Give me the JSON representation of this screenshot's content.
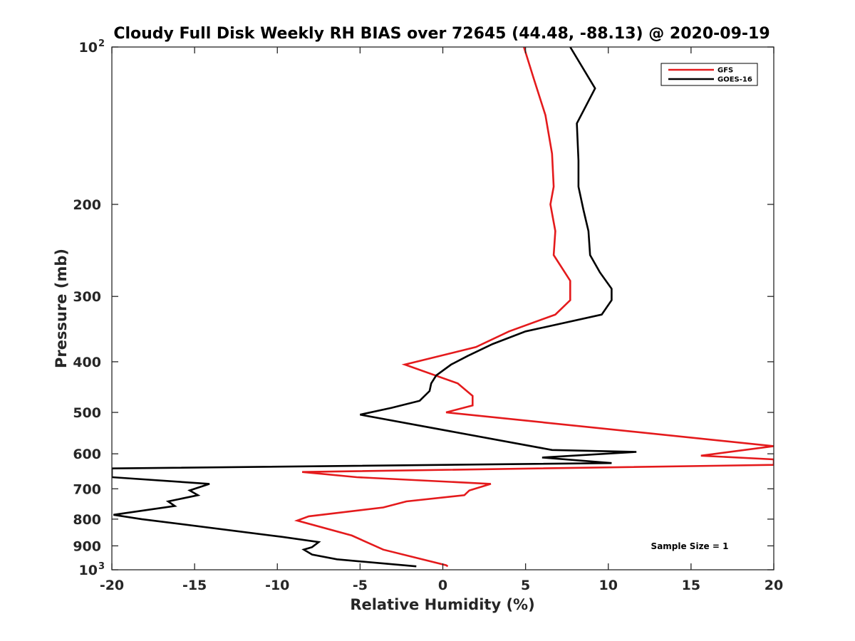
{
  "chart_data": {
    "type": "line",
    "title": "Cloudy Full Disk Weekly RH BIAS over 72645 (44.48, -88.13) @ 2020-09-19",
    "xlabel": "Relative Humidity (%)",
    "ylabel": "Pressure (mb)",
    "xlim": [
      -20,
      20
    ],
    "ylim": [
      1000,
      100
    ],
    "yscale": "log",
    "x_ticks": [
      -20,
      -15,
      -10,
      -5,
      0,
      5,
      10,
      15,
      20
    ],
    "x_tick_labels": [
      "-20",
      "-15",
      "-10",
      "-5",
      "0",
      "5",
      "10",
      "15",
      "20"
    ],
    "y_ticks": [
      100,
      200,
      300,
      400,
      500,
      600,
      700,
      800,
      900,
      1000
    ],
    "y_tick_labels": [
      {
        "base": "10",
        "sup": "2"
      },
      {
        "base": "200",
        "sup": ""
      },
      {
        "base": "300",
        "sup": ""
      },
      {
        "base": "400",
        "sup": ""
      },
      {
        "base": "500",
        "sup": ""
      },
      {
        "base": "600",
        "sup": ""
      },
      {
        "base": "700",
        "sup": ""
      },
      {
        "base": "800",
        "sup": ""
      },
      {
        "base": "900",
        "sup": ""
      },
      {
        "base": "10",
        "sup": "3"
      }
    ],
    "grid": false,
    "legend_position": "top-right",
    "annotation": "Sample Size = 1",
    "series": [
      {
        "name": "GFS",
        "color": "#e41a1c",
        "points": [
          [
            4.9,
            100
          ],
          [
            5.5,
            115
          ],
          [
            6.2,
            135
          ],
          [
            6.6,
            160
          ],
          [
            6.7,
            185
          ],
          [
            6.5,
            200
          ],
          [
            6.8,
            225
          ],
          [
            6.7,
            250
          ],
          [
            7.7,
            280
          ],
          [
            7.7,
            305
          ],
          [
            6.8,
            325
          ],
          [
            4.0,
            350
          ],
          [
            2.0,
            375
          ],
          [
            -2.3,
            405
          ],
          [
            0.9,
            440
          ],
          [
            1.8,
            465
          ],
          [
            1.8,
            485
          ],
          [
            0.2,
            500
          ],
          [
            20,
            580
          ],
          [
            15.6,
            605
          ],
          [
            20,
            615
          ],
          [
            20,
            630
          ],
          [
            -8.5,
            650
          ],
          [
            -5.2,
            665
          ],
          [
            2.9,
            685
          ],
          [
            1.6,
            705
          ],
          [
            1.3,
            720
          ],
          [
            -2.2,
            740
          ],
          [
            -3.6,
            760
          ],
          [
            -8.1,
            790
          ],
          [
            -8.8,
            805
          ],
          [
            -5.5,
            860
          ],
          [
            -3.6,
            915
          ],
          [
            0.2,
            980
          ],
          [
            0.3,
            985
          ]
        ]
      },
      {
        "name": "GOES-16",
        "color": "#000000",
        "points": [
          [
            7.7,
            100
          ],
          [
            9.2,
            120
          ],
          [
            8.1,
            140
          ],
          [
            8.2,
            165
          ],
          [
            8.2,
            185
          ],
          [
            8.5,
            205
          ],
          [
            8.8,
            225
          ],
          [
            8.9,
            250
          ],
          [
            9.5,
            270
          ],
          [
            10.2,
            290
          ],
          [
            10.2,
            305
          ],
          [
            9.6,
            325
          ],
          [
            5.0,
            350
          ],
          [
            3.0,
            370
          ],
          [
            1.5,
            390
          ],
          [
            0.5,
            405
          ],
          [
            -0.4,
            425
          ],
          [
            -0.7,
            440
          ],
          [
            -0.8,
            455
          ],
          [
            -1.4,
            475
          ],
          [
            -3.1,
            490
          ],
          [
            -5.0,
            505
          ],
          [
            6.6,
            590
          ],
          [
            11.7,
            595
          ],
          [
            6.0,
            610
          ],
          [
            10.2,
            625
          ],
          [
            -20,
            640
          ],
          [
            -20,
            665
          ],
          [
            -14.1,
            685
          ],
          [
            -15.3,
            705
          ],
          [
            -14.8,
            720
          ],
          [
            -16.6,
            740
          ],
          [
            -16.2,
            755
          ],
          [
            -19.9,
            785
          ],
          [
            -18.2,
            800
          ],
          [
            -9.7,
            865
          ],
          [
            -7.5,
            885
          ],
          [
            -7.9,
            905
          ],
          [
            -8.4,
            915
          ],
          [
            -7.9,
            935
          ],
          [
            -6.4,
            955
          ],
          [
            -1.6,
            985
          ]
        ]
      }
    ]
  }
}
